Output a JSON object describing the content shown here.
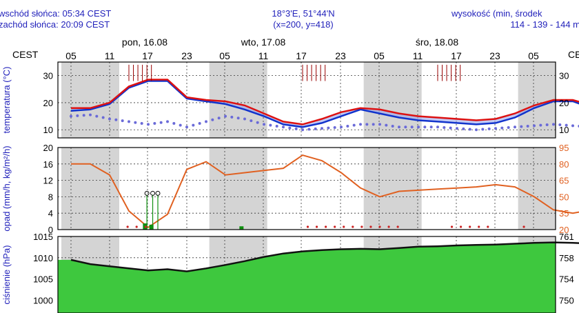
{
  "header": {
    "sunrise": "wschód słońca: 05:34 CEST",
    "sunset": "zachód słońca: 20:09 CEST",
    "coords": "18°3'E, 51°44'N",
    "grid": "(x=200,  y=418)",
    "elevation_label": "wysokość (min, środek",
    "elevation_values": "114 - 139 - 144 m"
  },
  "timezone_left": "CEST",
  "timezone_right": "CE",
  "days": [
    "pon, 16.08",
    "wto, 17.08",
    "śro, 18.08"
  ],
  "hours": [
    "05",
    "11",
    "17",
    "23",
    "05",
    "11",
    "17",
    "23",
    "05",
    "11",
    "17",
    "23",
    "05"
  ],
  "colors": {
    "text": "#2222bb",
    "temp_line": "#dd1111",
    "temp_dew": "#1133cc",
    "dot": "#6a6ad8",
    "precip_line": "#e06020",
    "precip_bar": "#109010",
    "pressure_fill": "#3ec83e",
    "night_band": "#d4d4d4",
    "right_axis": "#e06020"
  },
  "chart_data": [
    {
      "type": "line",
      "name": "temperature",
      "ylabel": "temperatura (°C)",
      "ylim": [
        7,
        35
      ],
      "yticks": [
        10,
        20,
        30
      ],
      "hours_from_start": [
        0,
        3,
        6,
        9,
        12,
        15,
        18,
        21,
        24,
        27,
        30,
        33,
        36,
        39,
        42,
        45,
        48,
        51,
        54,
        57,
        60,
        63,
        66,
        69,
        72,
        75,
        78,
        81,
        84,
        87,
        90,
        93,
        96
      ],
      "series": [
        {
          "values": [
            18,
            18,
            20,
            26,
            28.5,
            28.5,
            22,
            21,
            20.5,
            19,
            16,
            13,
            12,
            14,
            16.5,
            18,
            17.5,
            16,
            15,
            14.5,
            14,
            13.5,
            14,
            16,
            19,
            21,
            21,
            19,
            17,
            16,
            15.5,
            14.5,
            15.5
          ]
        },
        {
          "values": [
            17,
            17.5,
            19.5,
            25.5,
            28,
            28,
            21.5,
            20.5,
            19.5,
            17.5,
            15,
            12,
            11,
            12.5,
            15,
            17.5,
            16,
            14.5,
            13.5,
            13,
            12.5,
            12,
            12.5,
            14.5,
            18,
            20.5,
            20.5,
            18,
            16,
            15,
            14.5,
            13.5,
            14.5
          ]
        },
        {
          "values": [
            15,
            15.5,
            14,
            13,
            12,
            13,
            11,
            13,
            15,
            14,
            12,
            11,
            10,
            10.5,
            11,
            12,
            12,
            11,
            11,
            11,
            10.5,
            10,
            10.5,
            11,
            11.5,
            12,
            11.5,
            11,
            13,
            14,
            13.5,
            12,
            12.5
          ]
        }
      ]
    },
    {
      "type": "line",
      "name": "precipitation",
      "ylabel": "opad (mm/h, kg/m²/h)",
      "ylim": [
        0,
        20
      ],
      "yticks": [
        0,
        4,
        8,
        12,
        16,
        20
      ],
      "y2ticks": [
        20,
        35,
        50,
        65,
        80,
        95
      ],
      "hours_from_start": [
        0,
        3,
        6,
        9,
        12,
        15,
        18,
        21,
        24,
        27,
        30,
        33,
        36,
        39,
        42,
        45,
        48,
        51,
        54,
        57,
        60,
        63,
        66,
        69,
        72,
        75,
        78,
        81,
        84,
        87,
        90,
        93,
        96
      ],
      "series": [
        {
          "values": [
            80,
            80,
            70,
            37,
            22,
            34,
            75,
            82,
            70,
            72,
            74,
            76,
            88,
            83,
            72,
            58,
            50,
            55,
            56,
            57,
            58,
            59,
            61,
            59,
            50,
            38,
            35,
            38,
            65,
            72,
            79,
            80,
            80
          ]
        }
      ]
    },
    {
      "type": "area",
      "name": "pressure",
      "ylabel": "ciśnienie (hPa)",
      "ylim": [
        997,
        1015
      ],
      "yticks": [
        1000,
        1005,
        1010,
        1015
      ],
      "y2ticks": [
        750,
        754,
        758,
        761
      ],
      "hours_from_start": [
        0,
        3,
        6,
        9,
        12,
        15,
        18,
        21,
        24,
        27,
        30,
        33,
        36,
        39,
        42,
        45,
        48,
        51,
        54,
        57,
        60,
        63,
        66,
        69,
        72,
        75,
        78,
        81,
        84,
        87,
        90,
        93,
        96
      ],
      "series": [
        {
          "values": [
            1009.5,
            1008.5,
            1008,
            1007.5,
            1007,
            1007.3,
            1006.8,
            1007.5,
            1008.3,
            1009.2,
            1010.2,
            1011,
            1011.5,
            1011.8,
            1012,
            1012.1,
            1012,
            1012.3,
            1012.6,
            1012.7,
            1012.9,
            1013,
            1013.1,
            1013.3,
            1013.5,
            1013.6,
            1013.5,
            1013.3,
            1013.2,
            1013.1,
            1013,
            1013.2,
            1013.4
          ]
        }
      ]
    }
  ]
}
